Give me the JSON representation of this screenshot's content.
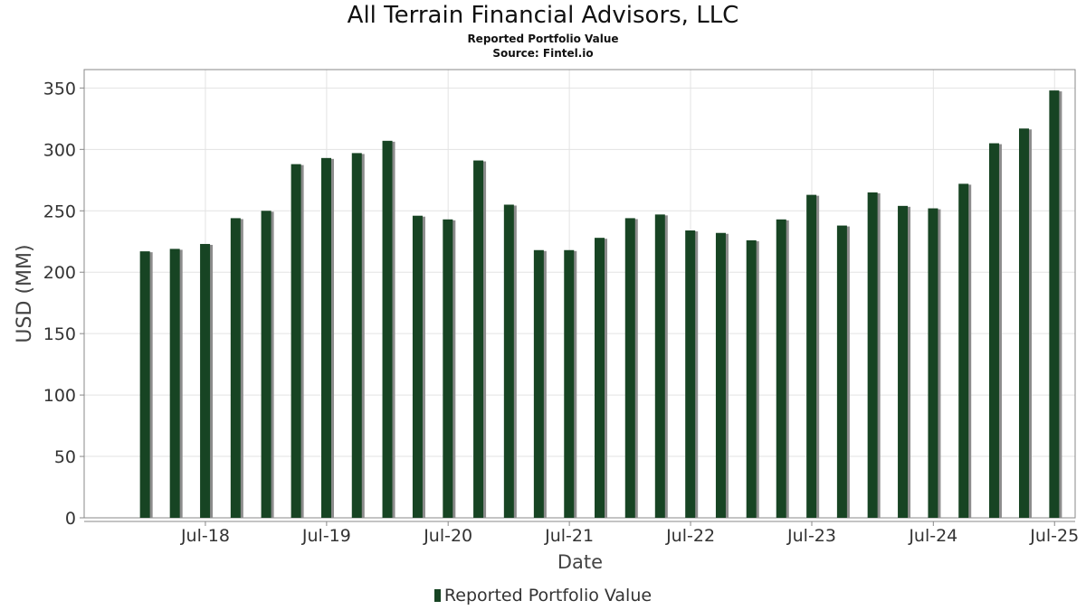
{
  "header": {
    "title": "All Terrain Financial Advisors, LLC",
    "subtitle": "Reported Portfolio Value",
    "source": "Source: Fintel.io"
  },
  "legend": {
    "label": "Reported Portfolio Value",
    "placement": "bottom-center"
  },
  "colors": {
    "bar": "#174423",
    "bar_shadow": "#8c8c8c",
    "grid": "#e3e3e3",
    "axis": "#888888"
  },
  "chart_data": {
    "type": "bar",
    "title": "All Terrain Financial Advisors, LLC",
    "subtitle": "Reported Portfolio Value",
    "xlabel": "Date",
    "ylabel": "USD (MM)",
    "ylim": [
      0,
      365
    ],
    "yticks": [
      0,
      50,
      100,
      150,
      200,
      250,
      300,
      350
    ],
    "grid": true,
    "legend_position": "bottom-center",
    "x_tick_labels": [
      "Jul-18",
      "Jul-19",
      "Jul-20",
      "Jul-21",
      "Jul-22",
      "Jul-23",
      "Jul-24",
      "Jul-25"
    ],
    "dates": [
      "2017-12-31",
      "2018-03-31",
      "2018-06-30",
      "2018-09-30",
      "2018-12-31",
      "2019-03-31",
      "2019-06-30",
      "2019-09-30",
      "2019-12-31",
      "2020-03-31",
      "2020-06-30",
      "2020-09-30",
      "2020-12-31",
      "2021-03-31",
      "2021-06-30",
      "2021-09-30",
      "2021-12-31",
      "2022-03-31",
      "2022-06-30",
      "2022-09-30",
      "2022-12-31",
      "2023-03-31",
      "2023-06-30",
      "2023-09-30",
      "2023-12-31",
      "2024-03-31",
      "2024-06-30",
      "2024-09-30",
      "2024-12-31",
      "2025-03-31",
      "2025-06-30"
    ],
    "series": [
      {
        "name": "Reported Portfolio Value",
        "values": [
          217,
          219,
          223,
          244,
          250,
          288,
          293,
          297,
          307,
          246,
          243,
          291,
          255,
          218,
          218,
          228,
          244,
          247,
          234,
          232,
          226,
          243,
          263,
          238,
          265,
          254,
          252,
          272,
          305,
          317,
          348
        ]
      }
    ]
  }
}
